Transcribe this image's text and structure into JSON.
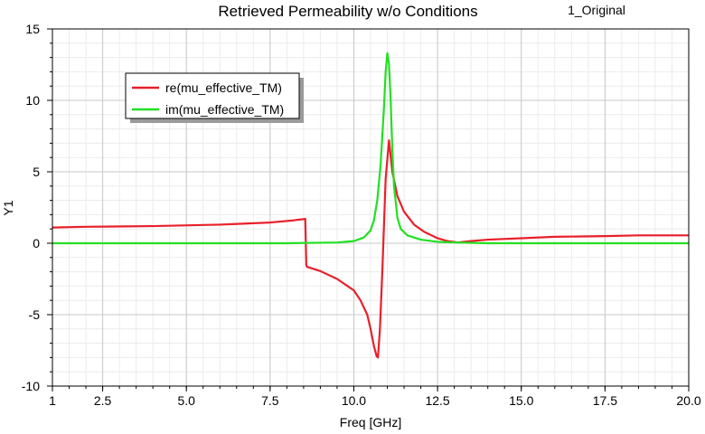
{
  "chart_data": {
    "type": "line",
    "title": "Retrieved Permeability w/o Conditions",
    "design_label": "1_Original",
    "xlabel": "Freq [GHz]",
    "ylabel": "Y1",
    "xlim": [
      1,
      20
    ],
    "ylim": [
      -10,
      15
    ],
    "x_ticks": [
      1,
      2.5,
      5.0,
      7.5,
      10.0,
      12.5,
      15.0,
      17.5,
      20.0
    ],
    "x_tick_labels": [
      "1",
      "2.5",
      "5.0",
      "7.5",
      "10.0",
      "12.5",
      "15.0",
      "17.5",
      "20.0"
    ],
    "y_ticks": [
      -10,
      -5,
      0,
      5,
      10,
      15
    ],
    "y_tick_labels": [
      "-10",
      "-5",
      "0",
      "5",
      "10",
      "15"
    ],
    "grid": true,
    "legend_position": "upper-left",
    "series": [
      {
        "name": "re(mu_effective_TM)",
        "color": "#e8202a",
        "x": [
          1.0,
          2.0,
          4.0,
          6.0,
          7.5,
          8.2,
          8.55,
          8.58,
          8.6,
          9.0,
          9.5,
          10.0,
          10.2,
          10.4,
          10.5,
          10.6,
          10.68,
          10.72,
          10.78,
          10.85,
          10.95,
          11.05,
          11.15,
          11.3,
          11.5,
          11.8,
          12.1,
          12.5,
          12.8,
          13.1,
          13.5,
          14.0,
          15.0,
          16.0,
          17.5,
          18.5,
          20.0
        ],
        "y": [
          1.1,
          1.15,
          1.2,
          1.3,
          1.45,
          1.6,
          1.7,
          -1.5,
          -1.65,
          -1.95,
          -2.5,
          -3.3,
          -4.0,
          -5.0,
          -6.0,
          -7.2,
          -7.9,
          -8.0,
          -6.0,
          -2.0,
          4.5,
          7.2,
          5.0,
          3.3,
          2.2,
          1.3,
          0.8,
          0.35,
          0.15,
          0.05,
          0.15,
          0.25,
          0.35,
          0.45,
          0.5,
          0.55,
          0.55
        ]
      },
      {
        "name": "im(mu_effective_TM)",
        "color": "#22e022",
        "x": [
          1.0,
          5.0,
          8.0,
          9.5,
          10.0,
          10.3,
          10.5,
          10.6,
          10.7,
          10.8,
          10.9,
          10.95,
          11.0,
          11.05,
          11.1,
          11.15,
          11.2,
          11.3,
          11.4,
          11.6,
          12.0,
          12.5,
          13.0,
          14.0,
          20.0
        ],
        "y": [
          0.0,
          0.0,
          0.0,
          0.05,
          0.15,
          0.4,
          0.9,
          1.6,
          3.0,
          5.5,
          9.5,
          12.0,
          13.3,
          12.5,
          10.0,
          6.5,
          4.0,
          1.8,
          1.0,
          0.55,
          0.25,
          0.1,
          0.05,
          0.0,
          0.0
        ]
      }
    ]
  }
}
